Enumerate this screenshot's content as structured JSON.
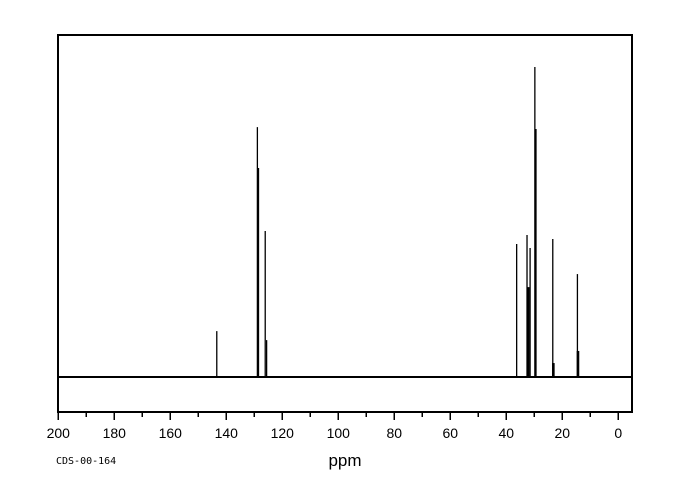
{
  "chart_data": {
    "type": "line",
    "subtype": "13C-NMR-spectrum",
    "title": "",
    "xlabel": "ppm",
    "sample_label": "CDS-00-164",
    "colors": {
      "line": "#000000",
      "background": "#ffffff"
    },
    "x_axis": {
      "min": 0,
      "max": 200,
      "reversed": true,
      "major_tick_step": 20,
      "minor_tick_step": 10,
      "tick_labels": [
        "200",
        "180",
        "160",
        "140",
        "120",
        "100",
        "80",
        "60",
        "40",
        "20",
        "0"
      ]
    },
    "y_axis": {
      "visible": false,
      "note": "intensity normalized 0-1, no scale shown"
    },
    "grid": false,
    "legend": false,
    "peaks": [
      {
        "ppm": 143.4,
        "intensity": 0.148
      },
      {
        "ppm": 128.9,
        "intensity": 0.806
      },
      {
        "ppm": 128.5,
        "intensity": 0.674
      },
      {
        "ppm": 126.1,
        "intensity": 0.471
      },
      {
        "ppm": 125.6,
        "intensity": 0.119
      },
      {
        "ppm": 36.3,
        "intensity": 0.429
      },
      {
        "ppm": 32.6,
        "intensity": 0.458
      },
      {
        "ppm": 32.2,
        "intensity": 0.29,
        "wide": true
      },
      {
        "ppm": 31.5,
        "intensity": 0.416
      },
      {
        "ppm": 29.8,
        "intensity": 1.0
      },
      {
        "ppm": 29.4,
        "intensity": 0.8
      },
      {
        "ppm": 23.4,
        "intensity": 0.445
      },
      {
        "ppm": 23.2,
        "intensity": 0.045,
        "wide": true
      },
      {
        "ppm": 14.6,
        "intensity": 0.332
      },
      {
        "ppm": 14.4,
        "intensity": 0.084,
        "wide": true
      }
    ]
  }
}
